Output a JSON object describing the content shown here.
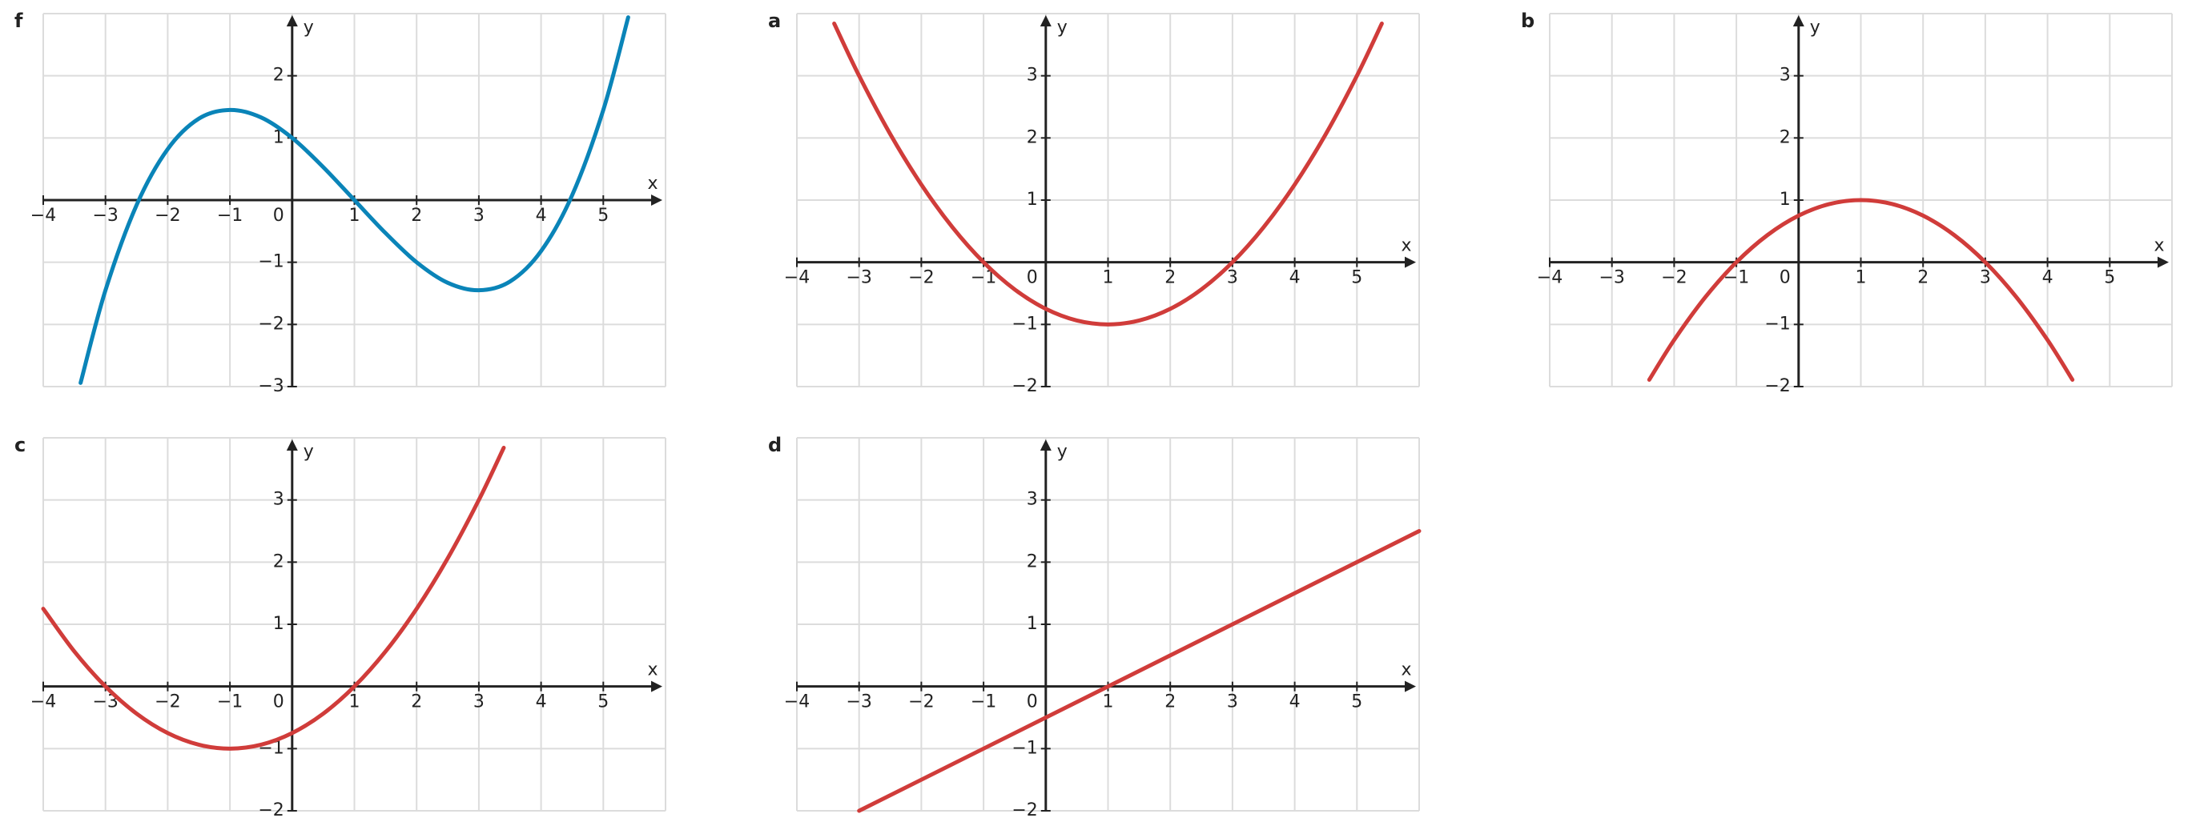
{
  "chart_data": [
    {
      "type": "line",
      "label": "f",
      "xlabel": "x",
      "ylabel": "y",
      "xlim": [
        -4,
        6
      ],
      "ylim": [
        -3,
        3
      ],
      "grid": true,
      "xticks": [
        {
          "value": -4,
          "label": "−4"
        },
        {
          "value": -3,
          "label": "−3"
        },
        {
          "value": -2,
          "label": "−2"
        },
        {
          "value": -1,
          "label": "−1"
        },
        0,
        1,
        2,
        3,
        4,
        5
      ],
      "yticks": [
        {
          "value": -3,
          "label": "−3"
        },
        {
          "value": -2,
          "label": "−2"
        },
        {
          "value": -1,
          "label": "−1"
        },
        1,
        2
      ],
      "series": [
        {
          "color": "#0a84b8",
          "x": [
            -3.4,
            -3,
            -2.5,
            -2,
            -1.5,
            -1,
            -0.5,
            0,
            0.5,
            1,
            1.5,
            2,
            2.5,
            3,
            3.5,
            4,
            4.5,
            5,
            5.4
          ],
          "values": [
            -2.94,
            -1.45,
            -0.08,
            0.82,
            1.31,
            1.45,
            1.33,
            1,
            0.53,
            0,
            -0.53,
            -1,
            -1.33,
            -1.45,
            -1.31,
            -0.82,
            0.08,
            1.45,
            2.94
          ]
        }
      ]
    },
    {
      "type": "line",
      "label": "a",
      "xlabel": "x",
      "ylabel": "y",
      "xlim": [
        -4,
        6
      ],
      "ylim": [
        -2,
        4
      ],
      "grid": true,
      "xticks": [
        {
          "value": -4,
          "label": "−4"
        },
        {
          "value": -3,
          "label": "−3"
        },
        {
          "value": -2,
          "label": "−2"
        },
        {
          "value": -1,
          "label": "−1"
        },
        0,
        1,
        2,
        3,
        4,
        5
      ],
      "yticks": [
        {
          "value": -2,
          "label": "−2"
        },
        {
          "value": -1,
          "label": "−1"
        },
        1,
        2,
        3
      ],
      "series": [
        {
          "color": "#d03c3a",
          "x": [
            -3.4,
            -3,
            -2.5,
            -2,
            -1.5,
            -1,
            -0.5,
            0,
            0.5,
            1,
            1.5,
            2,
            2.5,
            3,
            3.5,
            4,
            4.5,
            5,
            5.4
          ],
          "values": [
            3.84,
            3,
            2.0625,
            1.25,
            0.5625,
            0,
            -0.4375,
            -0.75,
            -0.9375,
            -1,
            -0.9375,
            -0.75,
            -0.4375,
            0,
            0.5625,
            1.25,
            2.0625,
            3,
            3.84
          ]
        }
      ]
    },
    {
      "type": "line",
      "label": "b",
      "xlabel": "x",
      "ylabel": "y",
      "xlim": [
        -4,
        6
      ],
      "ylim": [
        -2,
        4
      ],
      "grid": true,
      "xticks": [
        {
          "value": -4,
          "label": "−4"
        },
        {
          "value": -3,
          "label": "−3"
        },
        {
          "value": -2,
          "label": "−2"
        },
        {
          "value": -1,
          "label": "−1"
        },
        0,
        1,
        2,
        3,
        4,
        5
      ],
      "yticks": [
        {
          "value": -2,
          "label": "−2"
        },
        {
          "value": -1,
          "label": "−1"
        },
        1,
        2,
        3
      ],
      "series": [
        {
          "color": "#d03c3a",
          "x": [
            -2.4,
            -2,
            -1.5,
            -1,
            -0.5,
            0,
            0.5,
            1,
            1.5,
            2,
            2.5,
            3,
            3.5,
            4,
            4.4
          ],
          "values": [
            -1.89,
            -1.25,
            -0.5625,
            0,
            0.4375,
            0.75,
            0.9375,
            1,
            0.9375,
            0.75,
            0.4375,
            0,
            -0.5625,
            -1.25,
            -1.89
          ]
        }
      ]
    },
    {
      "type": "line",
      "label": "c",
      "xlabel": "x",
      "ylabel": "y",
      "xlim": [
        -4,
        6
      ],
      "ylim": [
        -2,
        4
      ],
      "grid": true,
      "xticks": [
        {
          "value": -4,
          "label": "−4"
        },
        {
          "value": -3,
          "label": "−3"
        },
        {
          "value": -2,
          "label": "−2"
        },
        {
          "value": -1,
          "label": "−1"
        },
        0,
        1,
        2,
        3,
        4,
        5
      ],
      "yticks": [
        {
          "value": -2,
          "label": "−2"
        },
        {
          "value": -1,
          "label": "−1"
        },
        1,
        2,
        3
      ],
      "series": [
        {
          "color": "#d03c3a",
          "x": [
            -4,
            -3.5,
            -3,
            -2.5,
            -2,
            -1.5,
            -1,
            -0.5,
            0,
            0.5,
            1,
            1.5,
            2,
            2.5,
            3,
            3.4
          ],
          "values": [
            1.25,
            0.5625,
            0,
            -0.4375,
            -0.75,
            -0.9375,
            -1,
            -0.9375,
            -0.75,
            -0.4375,
            0,
            0.5625,
            1.25,
            2.0625,
            3,
            3.84
          ]
        }
      ]
    },
    {
      "type": "line",
      "label": "d",
      "xlabel": "x",
      "ylabel": "y",
      "xlim": [
        -4,
        6
      ],
      "ylim": [
        -2,
        4
      ],
      "grid": true,
      "xticks": [
        {
          "value": -4,
          "label": "−4"
        },
        {
          "value": -3,
          "label": "−3"
        },
        {
          "value": -2,
          "label": "−2"
        },
        {
          "value": -1,
          "label": "−1"
        },
        0,
        1,
        2,
        3,
        4,
        5
      ],
      "yticks": [
        {
          "value": -2,
          "label": "−2"
        },
        {
          "value": -1,
          "label": "−1"
        },
        1,
        2,
        3
      ],
      "series": [
        {
          "color": "#d03c3a",
          "x": [
            -3,
            6
          ],
          "values": [
            -2,
            2.5
          ]
        }
      ]
    }
  ]
}
